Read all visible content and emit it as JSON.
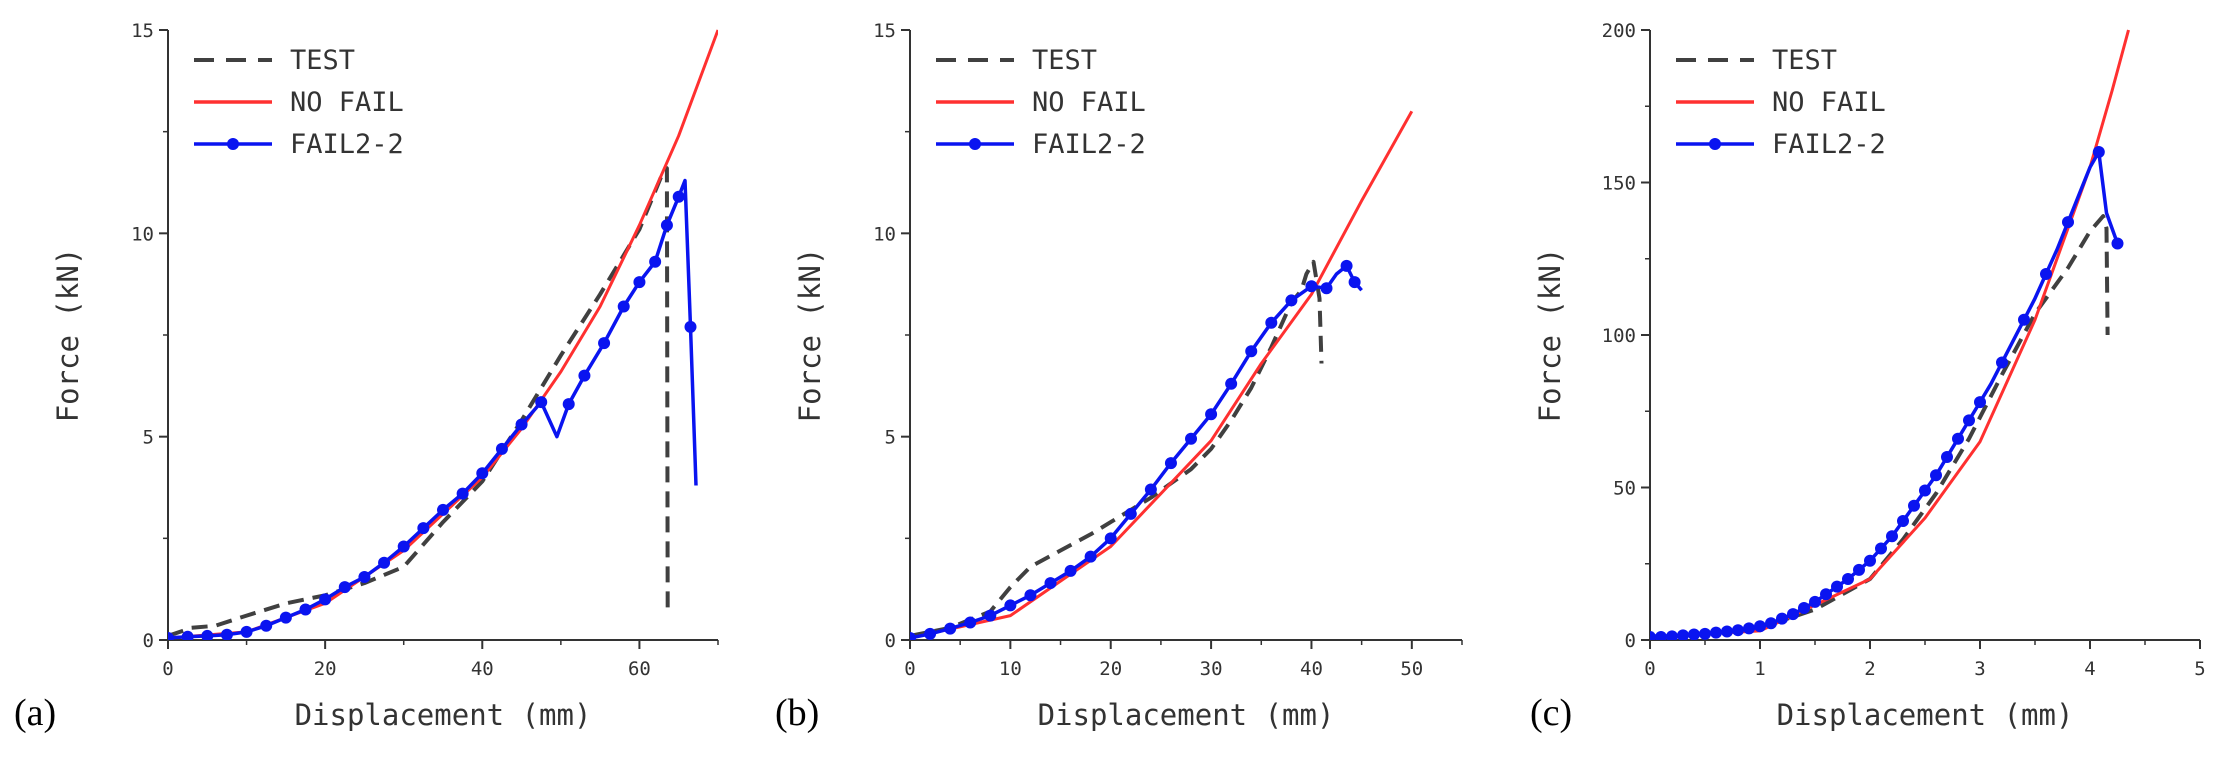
{
  "figure": {
    "colors": {
      "test": "#404040",
      "nofail": "#ff3030",
      "fail": "#0a14f0",
      "axis": "#333333"
    },
    "legend": {
      "test": "TEST",
      "nofail": "NO FAIL",
      "fail": "FAIL2-2"
    }
  },
  "chart_data": [
    {
      "type": "line",
      "label": "(a)",
      "xlabel": "Displacement (mm)",
      "ylabel": "Force (kN)",
      "xlim": [
        0,
        70
      ],
      "ylim": [
        0,
        15
      ],
      "xticks": [
        0,
        20,
        40,
        60
      ],
      "yticks": [
        0,
        5,
        10,
        15
      ],
      "legend_position": "top-left",
      "series": [
        {
          "name": "TEST",
          "style": "dashed",
          "x": [
            0,
            3,
            6,
            10,
            15,
            20,
            25,
            30,
            35,
            40,
            45,
            50,
            55,
            60,
            63,
            63.5,
            63.6
          ],
          "y": [
            0.1,
            0.3,
            0.35,
            0.6,
            0.9,
            1.1,
            1.4,
            1.8,
            2.9,
            3.9,
            5.4,
            7.0,
            8.5,
            10.1,
            11.5,
            11.6,
            0.6
          ]
        },
        {
          "name": "NO FAIL",
          "style": "solid",
          "x": [
            0,
            10,
            20,
            30,
            40,
            45,
            50,
            55,
            60,
            65,
            70
          ],
          "y": [
            0.05,
            0.2,
            0.9,
            2.2,
            4.0,
            5.2,
            6.6,
            8.2,
            10.2,
            12.4,
            15.0
          ]
        },
        {
          "name": "FAIL2-2",
          "style": "solid-marker",
          "x": [
            0,
            2.5,
            5,
            7.5,
            10,
            12.5,
            15,
            17.5,
            20,
            22.5,
            25,
            27.5,
            30,
            32.5,
            35,
            37.5,
            40,
            42.5,
            45,
            47.5,
            49.5,
            51,
            53,
            55.5,
            58,
            60,
            62,
            63.5,
            65,
            65.8,
            66.5,
            67.2
          ],
          "y": [
            0.05,
            0.08,
            0.1,
            0.13,
            0.2,
            0.35,
            0.55,
            0.75,
            1.0,
            1.3,
            1.55,
            1.9,
            2.3,
            2.75,
            3.2,
            3.6,
            4.1,
            4.7,
            5.3,
            5.85,
            5.0,
            5.8,
            6.5,
            7.3,
            8.2,
            8.8,
            9.3,
            10.2,
            10.9,
            11.3,
            7.7,
            3.8
          ],
          "markers": [
            0,
            2.5,
            5,
            7.5,
            10,
            12.5,
            15,
            17.5,
            20,
            22.5,
            25,
            27.5,
            30,
            32.5,
            35,
            37.5,
            40,
            42.5,
            45,
            47.5,
            51,
            53,
            55.5,
            58,
            60,
            62,
            63.5,
            65,
            66.5
          ]
        }
      ]
    },
    {
      "type": "line",
      "label": "(b)",
      "xlabel": "Displacement (mm)",
      "ylabel": "Force (kN)",
      "xlim": [
        0,
        55
      ],
      "ylim": [
        0,
        15
      ],
      "xticks": [
        0,
        10,
        20,
        30,
        40,
        50
      ],
      "yticks": [
        0,
        5,
        10,
        15
      ],
      "legend_position": "top-left",
      "series": [
        {
          "name": "TEST",
          "style": "dashed",
          "x": [
            0,
            4,
            8,
            10,
            12,
            15,
            18,
            20,
            22,
            24,
            26,
            28,
            30,
            32,
            34,
            36,
            38,
            39,
            39.5,
            40.2,
            40.8,
            41
          ],
          "y": [
            0.1,
            0.3,
            0.7,
            1.3,
            1.8,
            2.2,
            2.6,
            2.9,
            3.2,
            3.5,
            3.85,
            4.2,
            4.7,
            5.4,
            6.2,
            7.2,
            8.3,
            8.6,
            9.0,
            9.3,
            8.4,
            6.8
          ]
        },
        {
          "name": "NO FAIL",
          "style": "solid",
          "x": [
            0,
            10,
            20,
            30,
            35,
            40,
            45,
            50
          ],
          "y": [
            0.05,
            0.6,
            2.3,
            4.9,
            6.8,
            8.5,
            10.8,
            13.0
          ]
        },
        {
          "name": "FAIL2-2",
          "style": "solid-marker",
          "x": [
            0,
            2,
            4,
            6,
            8,
            10,
            12,
            14,
            16,
            18,
            20,
            22,
            24,
            26,
            28,
            30,
            32,
            34,
            36,
            38,
            40,
            41.5,
            42.5,
            43.5,
            44.3,
            45
          ],
          "y": [
            0.05,
            0.15,
            0.28,
            0.43,
            0.6,
            0.85,
            1.1,
            1.4,
            1.7,
            2.05,
            2.5,
            3.1,
            3.7,
            4.35,
            4.95,
            5.55,
            6.3,
            7.1,
            7.8,
            8.35,
            8.7,
            8.65,
            9.0,
            9.2,
            8.8,
            8.6
          ],
          "markers": [
            0,
            2,
            4,
            6,
            8,
            10,
            12,
            14,
            16,
            18,
            20,
            22,
            24,
            26,
            28,
            30,
            32,
            34,
            36,
            38,
            40,
            41.5,
            43.5,
            44.3
          ]
        }
      ]
    },
    {
      "type": "line",
      "label": "(c)",
      "xlabel": "Displacement (mm)",
      "ylabel": "Force (kN)",
      "xlim": [
        0,
        5
      ],
      "ylim": [
        0,
        200
      ],
      "xticks": [
        0,
        1,
        2,
        3,
        4,
        5
      ],
      "yticks": [
        0,
        50,
        100,
        150,
        200
      ],
      "legend_position": "top-left",
      "series": [
        {
          "name": "TEST",
          "style": "dashed",
          "x": [
            0,
            0.5,
            1.0,
            1.5,
            2.0,
            2.3,
            2.6,
            2.9,
            3.2,
            3.5,
            3.8,
            4.0,
            4.12,
            4.15,
            4.16
          ],
          "y": [
            1,
            2,
            4,
            10,
            20,
            33,
            48,
            66,
            87,
            107,
            122,
            134,
            139,
            135,
            100
          ]
        },
        {
          "name": "NO FAIL",
          "style": "solid",
          "x": [
            0,
            1.0,
            2.0,
            2.5,
            3.0,
            3.5,
            4.0,
            4.2,
            4.35
          ],
          "y": [
            1,
            3,
            20,
            40,
            65,
            105,
            155,
            180,
            200
          ]
        },
        {
          "name": "FAIL2-2",
          "style": "solid-marker",
          "x": [
            0,
            0.1,
            0.2,
            0.3,
            0.4,
            0.5,
            0.6,
            0.7,
            0.8,
            0.9,
            1.0,
            1.1,
            1.2,
            1.3,
            1.4,
            1.5,
            1.6,
            1.7,
            1.8,
            1.9,
            2.0,
            2.1,
            2.2,
            2.3,
            2.4,
            2.5,
            2.6,
            2.7,
            2.8,
            2.9,
            3.0,
            3.1,
            3.2,
            3.3,
            3.4,
            3.5,
            3.6,
            3.7,
            3.8,
            3.9,
            4.0,
            4.08,
            4.15,
            4.25
          ],
          "y": [
            1,
            1,
            1.2,
            1.5,
            1.8,
            2.0,
            2.4,
            2.8,
            3.2,
            3.8,
            4.5,
            5.5,
            7.0,
            8.5,
            10.5,
            12.5,
            15,
            17.5,
            20,
            23,
            26,
            30,
            34,
            39,
            44,
            49,
            54,
            60,
            66,
            72,
            78,
            84,
            91,
            98,
            105,
            112,
            120,
            128,
            137,
            146,
            155,
            160,
            140,
            130
          ],
          "markers": [
            0,
            0.1,
            0.2,
            0.3,
            0.4,
            0.5,
            0.6,
            0.7,
            0.8,
            0.9,
            1.0,
            1.1,
            1.2,
            1.3,
            1.4,
            1.5,
            1.6,
            1.7,
            1.8,
            1.9,
            2.0,
            2.1,
            2.2,
            2.3,
            2.4,
            2.5,
            2.6,
            2.7,
            2.8,
            2.9,
            3.0,
            3.2,
            3.4,
            3.6,
            3.8,
            4.08,
            4.25
          ]
        }
      ]
    }
  ]
}
